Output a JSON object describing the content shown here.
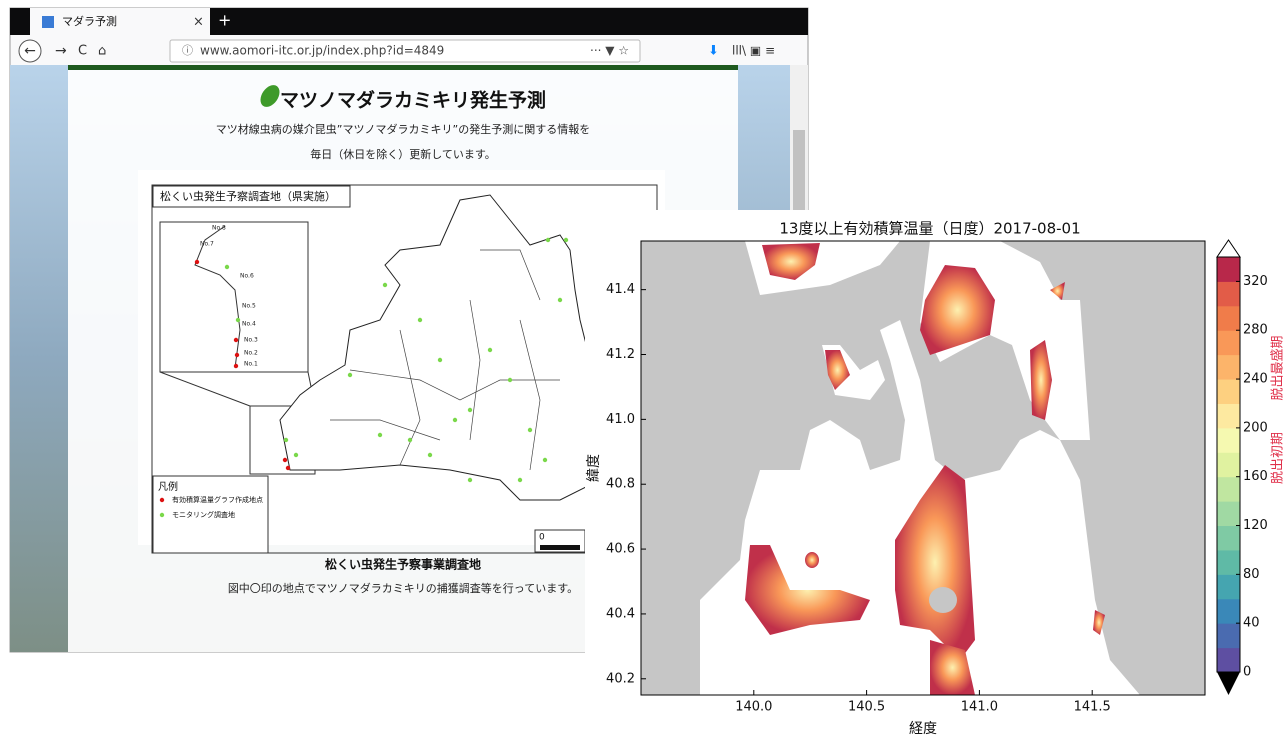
{
  "browser": {
    "tab_title": "マダラ予測",
    "url": "www.aomori-itc.or.jp/index.php?id=4849"
  },
  "page": {
    "title": "マツノマダラカミキリ発生予測",
    "description": [
      "マツ材線虫病の媒介昆虫”マツノマダラカミキリ”の発生予測に関する情報を",
      "毎日（休日を除く）更新しています。"
    ],
    "map": {
      "title": "松くい虫発生予察調査地（県実施）",
      "legend_title": "凡例",
      "legend_items": [
        "有効積算温量グラフ作成地点",
        "モニタリング調査地"
      ],
      "scale_label": "0",
      "inset_labels": [
        "No.8",
        "No.7",
        "No.6",
        "No.5",
        "No.4",
        "No.3",
        "No.2",
        "No.1"
      ]
    },
    "caption_title": "松くい虫発生予察事業調査地",
    "caption_text": "図中〇印の地点でマツノマダラカミキリの捕獲調査等を行っています。"
  },
  "chart_data": {
    "type": "heatmap",
    "title": "13度以上有効積算温量（日度）2017-08-01",
    "x_label": "経度",
    "y_label": "緯度",
    "xlim": [
      139.5,
      142.0
    ],
    "ylim": [
      40.15,
      41.55
    ],
    "xticks": [
      {
        "value": 140,
        "label": "140.0"
      },
      140.5,
      {
        "value": 141,
        "label": "141.0"
      },
      141.5
    ],
    "yticks": [
      40.2,
      40.4,
      40.6,
      40.8,
      {
        "value": 41,
        "label": "41.0"
      },
      41.2,
      41.4
    ],
    "colorbar": {
      "lim": [
        0,
        340
      ],
      "ticks": [
        0,
        40,
        80,
        120,
        160,
        200,
        240,
        280,
        320
      ],
      "colors": [
        "#5e4fa2",
        "#4a6bb0",
        "#3a88b8",
        "#45a5b0",
        "#5fbaa6",
        "#7fcaa4",
        "#a0d9a3",
        "#c0e6a0",
        "#e0f2a0",
        "#f5f9b0",
        "#fde9a0",
        "#fdd080",
        "#fcb46a",
        "#f99858",
        "#f07c4a",
        "#e25c48",
        "#b8284a"
      ],
      "labels": [
        "脱出初期",
        "脱出最盛期"
      ],
      "label_color": "#e0304a"
    }
  }
}
